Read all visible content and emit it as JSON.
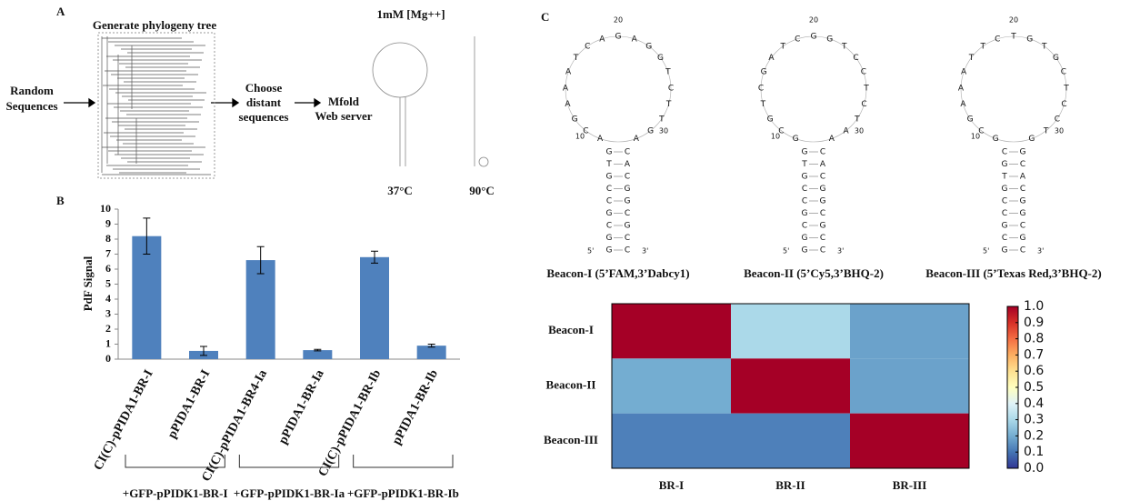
{
  "panel_labels": [
    "A",
    "B",
    "C"
  ],
  "panel_a": {
    "tree_title": "Generate phylogeny tree",
    "input": [
      "Random",
      "Sequences"
    ],
    "step_choose": [
      "Choose",
      "distant",
      "sequences"
    ],
    "step_mfold": [
      "Mfold",
      "Web server"
    ],
    "condition": "1mM [Mg++]",
    "temperatures": [
      "37°C",
      "90°C"
    ]
  },
  "panel_c": {
    "beacons": [
      {
        "label": "Beacon-I (5’FAM,3’Dabcy1)",
        "loop": "ACGAAATCAGAGGTCTTGA",
        "stem_left": "GTGCCGCGG",
        "stem_right": "CACGGCGCC",
        "positions": [
          "10",
          "20",
          "30"
        ],
        "ends": [
          "5'",
          "3'"
        ]
      },
      {
        "label": "Beacon-II (5’Cy5,3’BHQ-2)",
        "loop": "GCGTCGATCGGTCCTCTAA",
        "stem_left": "GTGCCGCGG",
        "stem_right": "CACGGCGCC",
        "positions": [
          "10",
          "20",
          "30"
        ],
        "ends": [
          "5'",
          "3'"
        ]
      },
      {
        "label": "Beacon-III (5’Texas Red,3’BHQ-2)",
        "loop": "GCGAAATTCTGTGCTCCTG",
        "stem_left": "CGTGCCGCG",
        "stem_right": "GCACGGCGC",
        "positions": [
          "10",
          "20",
          "30"
        ],
        "ends": [
          "5'",
          "3'"
        ]
      }
    ]
  },
  "chart_data": [
    {
      "type": "bar",
      "ylabel": "PdF Signal",
      "categories": [
        "CI(C)-pPIDA1-BR-I",
        "pPIDA1-BR-I",
        "CI(C)-pPIDA1-BR4-Ia",
        "pPIDA1-BR-Ia",
        "CI(C)-pPIDA1-BR-Ib",
        "pPIDA1-BR-Ib"
      ],
      "values": [
        8.2,
        0.55,
        6.6,
        0.6,
        6.8,
        0.9
      ],
      "errors": [
        1.2,
        0.3,
        0.9,
        0.05,
        0.4,
        0.1
      ],
      "color": "#4f81bd",
      "ylim": [
        0,
        10
      ],
      "yticks": [
        0,
        1,
        2,
        3,
        4,
        5,
        6,
        7,
        8,
        9,
        10
      ],
      "groups": [
        "+GFP-pPIDK1-BR-I",
        "+GFP-pPIDK1-BR-Ia",
        "+GFP-pPIDK1-BR-Ib"
      ]
    },
    {
      "type": "heatmap",
      "rows": [
        "Beacon-I",
        "Beacon-II",
        "Beacon-III"
      ],
      "columns": [
        "BR-I",
        "BR-II",
        "BR-III"
      ],
      "values": [
        [
          1.0,
          0.3,
          0.18
        ],
        [
          0.2,
          1.0,
          0.18
        ],
        [
          0.12,
          0.12,
          1.0
        ]
      ],
      "colormap": "RdYlBu_r",
      "clim": [
        0,
        1
      ],
      "cticks": [
        {
          "value": 0,
          "label": "0.0"
        },
        0.1,
        0.2,
        0.3,
        0.4,
        0.5,
        0.6,
        0.7,
        0.8,
        0.9,
        {
          "value": 1,
          "label": "1.0"
        }
      ]
    }
  ]
}
